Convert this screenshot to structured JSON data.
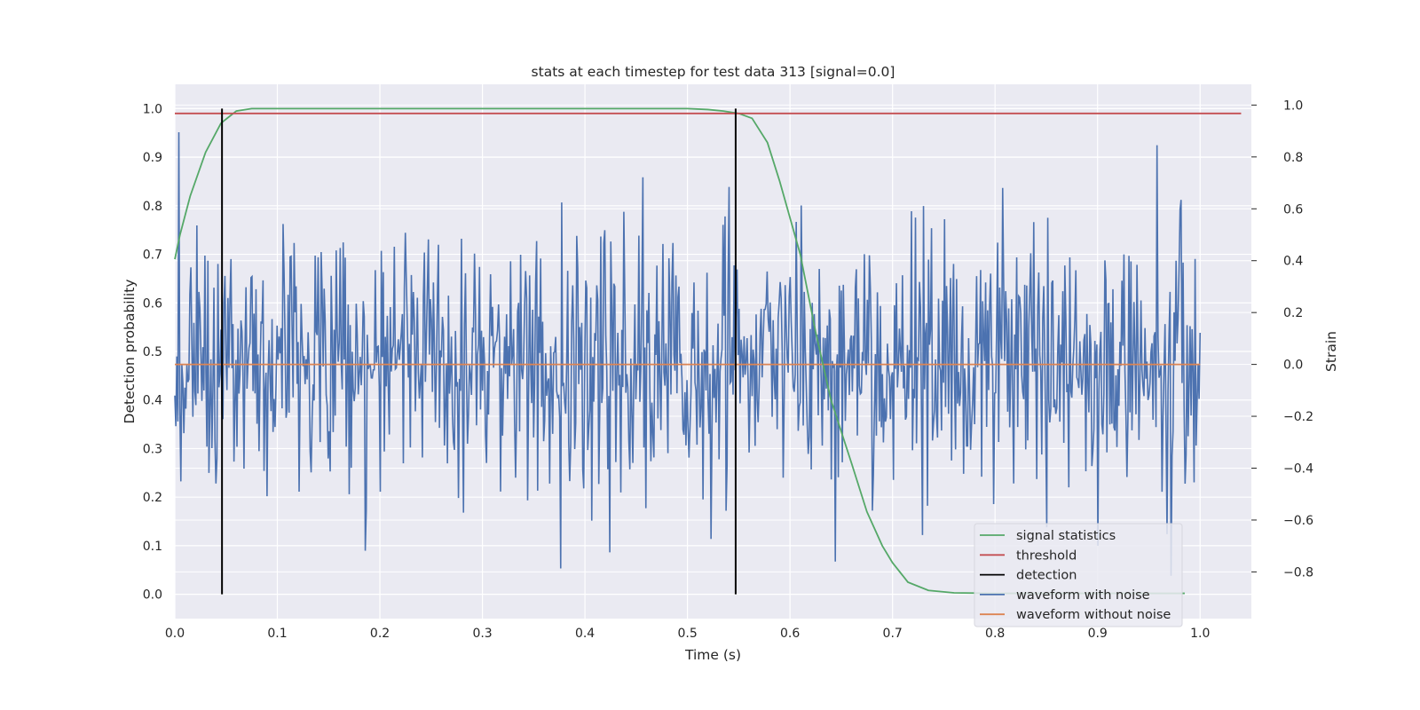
{
  "chart_data": {
    "type": "line",
    "title": "stats at each timestep for test data 313 [signal=0.0]",
    "xlabel": "Time (s)",
    "ylabel_left": "Detection probability",
    "ylabel_right": "Strain",
    "xlim": [
      0.0,
      1.05
    ],
    "ylim_left": [
      -0.05,
      1.05
    ],
    "ylim_right": [
      -0.98,
      1.08
    ],
    "x_ticks": [
      "0.0",
      "0.1",
      "0.2",
      "0.3",
      "0.4",
      "0.5",
      "0.6",
      "0.7",
      "0.8",
      "0.9",
      "1.0"
    ],
    "y_left_ticks": [
      "0.0",
      "0.1",
      "0.2",
      "0.3",
      "0.4",
      "0.5",
      "0.6",
      "0.7",
      "0.8",
      "0.9",
      "1.0"
    ],
    "y_right_ticks": [
      "−0.8",
      "−0.6",
      "−0.4",
      "−0.2",
      "0.0",
      "0.2",
      "0.4",
      "0.6",
      "0.8",
      "1.0"
    ],
    "grid": true,
    "legend_position": "lower-right",
    "colors": {
      "signal_statistics": "#55a868",
      "threshold": "#c44e52",
      "detection": "#000000",
      "waveform_with_noise": "#4c72b0",
      "waveform_without_noise": "#dd8452",
      "plot_background": "#eaeaf2",
      "grid": "#ffffff"
    },
    "legend": [
      {
        "label": "signal statistics",
        "series": "signal_statistics"
      },
      {
        "label": "threshold",
        "series": "threshold"
      },
      {
        "label": "detection",
        "series": "detection"
      },
      {
        "label": "waveform with noise",
        "series": "waveform_with_noise"
      },
      {
        "label": "waveform without noise",
        "series": "waveform_without_noise"
      }
    ],
    "series": {
      "signal_statistics": {
        "axis": "left",
        "x": [
          0.0,
          0.005,
          0.015,
          0.03,
          0.045,
          0.06,
          0.075,
          0.1,
          0.2,
          0.3,
          0.4,
          0.5,
          0.52,
          0.535,
          0.55,
          0.563,
          0.578,
          0.59,
          0.61,
          0.625,
          0.64,
          0.66,
          0.675,
          0.69,
          0.7,
          0.715,
          0.735,
          0.76,
          0.8,
          0.9,
          0.985
        ],
        "y": [
          0.69,
          0.74,
          0.82,
          0.91,
          0.97,
          0.995,
          1.0,
          1.0,
          1.0,
          1.0,
          1.0,
          1.0,
          0.998,
          0.995,
          0.99,
          0.98,
          0.93,
          0.85,
          0.7,
          0.54,
          0.4,
          0.27,
          0.17,
          0.1,
          0.065,
          0.025,
          0.008,
          0.003,
          0.002,
          0.002,
          0.002
        ]
      },
      "threshold": {
        "axis": "left",
        "x": [
          0.0,
          1.04
        ],
        "y": [
          0.99,
          0.99
        ]
      },
      "detection": {
        "axis": "left",
        "x": [
          0.046,
          0.547
        ],
        "y_range": [
          0.0,
          1.0
        ]
      },
      "waveform_with_noise": {
        "axis": "right",
        "x_range": [
          0.0,
          1.0
        ],
        "n_samples": 1024,
        "approx_std": 0.25,
        "approx_min": -0.89,
        "approx_max": 1.0
      },
      "waveform_without_noise": {
        "axis": "right",
        "x": [
          0.0,
          1.0
        ],
        "y": [
          0.0,
          0.0
        ]
      }
    }
  }
}
